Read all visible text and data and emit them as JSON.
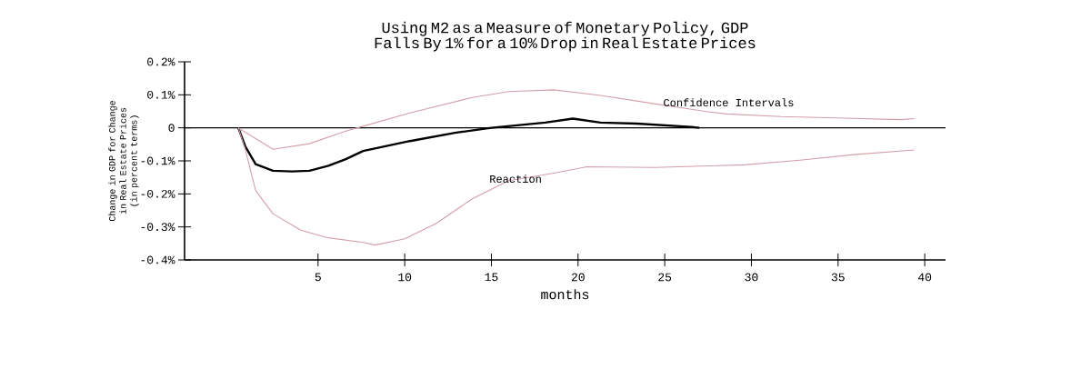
{
  "chart_data": {
    "type": "line",
    "title": "Using M2 as a Measure of Monetary Policy, GDP Falls By 1% for a 10% Drop in Real Estate Prices",
    "xlabel": "months",
    "ylabel": "Change in GDP for Change in Real Estate Prices (in percent terms)",
    "xlim": [
      -2.7,
      41.2
    ],
    "ylim": [
      -0.4,
      0.2
    ],
    "xticks": [
      5,
      10,
      15,
      20,
      25,
      30,
      35,
      40
    ],
    "yticks": [
      {
        "value": -0.4,
        "label": "-0.4%"
      },
      {
        "value": -0.3,
        "label": "-0.3%"
      },
      {
        "value": -0.2,
        "label": "-0.2%"
      },
      {
        "value": -0.1,
        "label": "-0.1%"
      },
      0,
      {
        "value": 0.1,
        "label": "0.1%"
      },
      {
        "value": 0.2,
        "label": "0.2%"
      }
    ],
    "series": [
      {
        "color": "#000000",
        "x": [
          0.4,
          0.8,
          1.4,
          2.4,
          3.5,
          4.5,
          5.6,
          6.6,
          7.6,
          10.3,
          12.9,
          15,
          18.1,
          19.7,
          21.3,
          23.4,
          26.5,
          27
        ],
        "values": [
          0,
          -0.056,
          -0.11,
          -0.13,
          -0.132,
          -0.13,
          -0.115,
          -0.095,
          -0.07,
          -0.04,
          -0.015,
          0,
          0.016,
          0.028,
          0.016,
          0.013,
          0.003,
          0
        ]
      },
      {
        "color": "#d4a0a8",
        "x": [
          0.4,
          2.4,
          4.5,
          6.6,
          7.6,
          10.3,
          13.9,
          16,
          18.6,
          21.3,
          24.4,
          27.6,
          28.6,
          31.7,
          34.9,
          38.6,
          39.4
        ],
        "values": [
          0,
          -0.065,
          -0.048,
          -0.01,
          0.005,
          0.045,
          0.092,
          0.11,
          0.115,
          0.098,
          0.073,
          0.048,
          0.042,
          0.034,
          0.03,
          0.025,
          0.028
        ]
      },
      {
        "color": "#d4a0a8",
        "x": [
          0.4,
          0.8,
          1.4,
          2.4,
          4,
          5.6,
          7.6,
          8.3,
          10,
          11.8,
          13.9,
          16,
          18.6,
          20.5,
          24.4,
          27.6,
          29.6,
          32.8,
          35.9,
          39.4
        ],
        "values": [
          0,
          -0.065,
          -0.19,
          -0.26,
          -0.31,
          -0.333,
          -0.347,
          -0.355,
          -0.336,
          -0.29,
          -0.215,
          -0.16,
          -0.137,
          -0.118,
          -0.12,
          -0.115,
          -0.112,
          -0.098,
          -0.081,
          -0.067
        ]
      }
    ],
    "ref_lines": [
      {
        "axis": "y",
        "value": 0,
        "color": "#000000"
      }
    ],
    "annotations": [
      "Reaction",
      "Confidence Intervals"
    ],
    "marker": "none",
    "line_style": "solid",
    "grid": false
  }
}
